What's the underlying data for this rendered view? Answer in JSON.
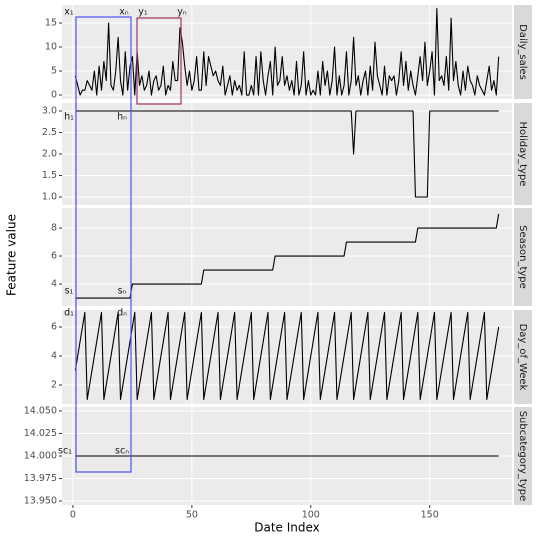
{
  "chart_data": {
    "type": "line",
    "xlabel": "Date Index",
    "ylabel": "Feature value",
    "xlim": [
      -4.6,
      184.6
    ],
    "xticks": [
      0,
      50,
      100,
      150
    ],
    "grid": true,
    "color": "#000000",
    "x": [
      1,
      2,
      3,
      4,
      5,
      6,
      7,
      8,
      9,
      10,
      11,
      12,
      13,
      14,
      15,
      16,
      17,
      18,
      19,
      20,
      21,
      22,
      23,
      24,
      25,
      26,
      27,
      28,
      29,
      30,
      31,
      32,
      33,
      34,
      35,
      36,
      37,
      38,
      39,
      40,
      41,
      42,
      43,
      44,
      45,
      46,
      47,
      48,
      49,
      50,
      51,
      52,
      53,
      54,
      55,
      56,
      57,
      58,
      59,
      60,
      61,
      62,
      63,
      64,
      65,
      66,
      67,
      68,
      69,
      70,
      71,
      72,
      73,
      74,
      75,
      76,
      77,
      78,
      79,
      80,
      81,
      82,
      83,
      84,
      85,
      86,
      87,
      88,
      89,
      90,
      91,
      92,
      93,
      94,
      95,
      96,
      97,
      98,
      99,
      100,
      101,
      102,
      103,
      104,
      105,
      106,
      107,
      108,
      109,
      110,
      111,
      112,
      113,
      114,
      115,
      116,
      117,
      118,
      119,
      120,
      121,
      122,
      123,
      124,
      125,
      126,
      127,
      128,
      129,
      130,
      131,
      132,
      133,
      134,
      135,
      136,
      137,
      138,
      139,
      140,
      141,
      142,
      143,
      144,
      145,
      146,
      147,
      148,
      149,
      150,
      151,
      152,
      153,
      154,
      155,
      156,
      157,
      158,
      159,
      160,
      161,
      162,
      163,
      164,
      165,
      166,
      167,
      168,
      169,
      170,
      171,
      172,
      173,
      174,
      175,
      176,
      177,
      178,
      179
    ],
    "panels": [
      {
        "strip": "Daily_sales",
        "ylim": [
          -0.83,
          18.75
        ],
        "yticks": [
          0,
          5,
          10,
          15
        ],
        "annotations": [
          "x₁",
          "xₙ",
          "y₁",
          "yₙ"
        ],
        "values": [
          4,
          2,
          0,
          1,
          1,
          3,
          2,
          1,
          5,
          0,
          6,
          1,
          7,
          3,
          15,
          2,
          1,
          5,
          12,
          3,
          0,
          9,
          1,
          6,
          8,
          0,
          9,
          2,
          4,
          1,
          2,
          5,
          0,
          3,
          4,
          1,
          2,
          6,
          0,
          2,
          1,
          7,
          3,
          3,
          14,
          11,
          6,
          2,
          5,
          1,
          3,
          8,
          1,
          1,
          9,
          2,
          8,
          6,
          4,
          5,
          3,
          2,
          6,
          0,
          2,
          4,
          0,
          3,
          1,
          2,
          0,
          9,
          0,
          0,
          2,
          0,
          8,
          0,
          9,
          3,
          0,
          4,
          7,
          0,
          10,
          2,
          3,
          8,
          2,
          4,
          1,
          3,
          0,
          7,
          0,
          2,
          9,
          0,
          3,
          0,
          1,
          0,
          5,
          0,
          7,
          2,
          5,
          0,
          3,
          10,
          0,
          4,
          0,
          2,
          9,
          0,
          3,
          12,
          2,
          4,
          0,
          3,
          5,
          0,
          6,
          1,
          11,
          4,
          2,
          0,
          6,
          0,
          4,
          3,
          4,
          0,
          3,
          9,
          2,
          7,
          1,
          5,
          2,
          0,
          4,
          8,
          3,
          11,
          2,
          5,
          9,
          0,
          18,
          3,
          4,
          2,
          8,
          1,
          16,
          3,
          7,
          2,
          0,
          5,
          1,
          6,
          3,
          2,
          0,
          4,
          2,
          1,
          0,
          3,
          6,
          1,
          3,
          0,
          8
        ]
      },
      {
        "strip": "Holiday_type",
        "ylim": [
          0.814,
          3.186
        ],
        "yticks": [
          {
            "value": 1,
            "label": "1.0"
          },
          1.5,
          {
            "value": 2,
            "label": "2.0"
          },
          2.5,
          {
            "value": 3,
            "label": "3.0"
          }
        ],
        "annotations": [
          "h₁",
          "hₙ"
        ],
        "values": [
          3,
          3,
          3,
          3,
          3,
          3,
          3,
          3,
          3,
          3,
          3,
          3,
          3,
          3,
          3,
          3,
          3,
          3,
          3,
          3,
          3,
          3,
          3,
          3,
          3,
          3,
          3,
          3,
          3,
          3,
          3,
          3,
          3,
          3,
          3,
          3,
          3,
          3,
          3,
          3,
          3,
          3,
          3,
          3,
          3,
          3,
          3,
          3,
          3,
          3,
          3,
          3,
          3,
          3,
          3,
          3,
          3,
          3,
          3,
          3,
          3,
          3,
          3,
          3,
          3,
          3,
          3,
          3,
          3,
          3,
          3,
          3,
          3,
          3,
          3,
          3,
          3,
          3,
          3,
          3,
          3,
          3,
          3,
          3,
          3,
          3,
          3,
          3,
          3,
          3,
          3,
          3,
          3,
          3,
          3,
          3,
          3,
          3,
          3,
          3,
          3,
          3,
          3,
          3,
          3,
          3,
          3,
          3,
          3,
          3,
          3,
          3,
          3,
          3,
          3,
          3,
          3,
          2,
          3,
          3,
          3,
          3,
          3,
          3,
          3,
          3,
          3,
          3,
          3,
          3,
          3,
          3,
          3,
          3,
          3,
          3,
          3,
          3,
          3,
          3,
          3,
          3,
          3,
          1,
          1,
          1,
          1,
          1,
          1,
          3,
          3,
          3,
          3,
          3,
          3,
          3,
          3,
          3,
          3,
          3,
          3,
          3,
          3,
          3,
          3,
          3,
          3,
          3,
          3,
          3,
          3,
          3,
          3,
          3,
          3,
          3,
          3,
          3,
          3
        ]
      },
      {
        "strip": "Season_type",
        "ylim": [
          2.43,
          9.43
        ],
        "yticks": [
          4,
          6,
          8
        ],
        "annotations": [
          "s₁",
          "sₙ"
        ],
        "values": [
          3,
          3,
          3,
          3,
          3,
          3,
          3,
          3,
          3,
          3,
          3,
          3,
          3,
          3,
          3,
          3,
          3,
          3,
          3,
          3,
          3,
          3,
          3,
          3,
          4,
          4,
          4,
          4,
          4,
          4,
          4,
          4,
          4,
          4,
          4,
          4,
          4,
          4,
          4,
          4,
          4,
          4,
          4,
          4,
          4,
          4,
          4,
          4,
          4,
          4,
          4,
          4,
          4,
          4,
          5,
          5,
          5,
          5,
          5,
          5,
          5,
          5,
          5,
          5,
          5,
          5,
          5,
          5,
          5,
          5,
          5,
          5,
          5,
          5,
          5,
          5,
          5,
          5,
          5,
          5,
          5,
          5,
          5,
          5,
          6,
          6,
          6,
          6,
          6,
          6,
          6,
          6,
          6,
          6,
          6,
          6,
          6,
          6,
          6,
          6,
          6,
          6,
          6,
          6,
          6,
          6,
          6,
          6,
          6,
          6,
          6,
          6,
          6,
          6,
          7,
          7,
          7,
          7,
          7,
          7,
          7,
          7,
          7,
          7,
          7,
          7,
          7,
          7,
          7,
          7,
          7,
          7,
          7,
          7,
          7,
          7,
          7,
          7,
          7,
          7,
          7,
          7,
          7,
          7,
          8,
          8,
          8,
          8,
          8,
          8,
          8,
          8,
          8,
          8,
          8,
          8,
          8,
          8,
          8,
          8,
          8,
          8,
          8,
          8,
          8,
          8,
          8,
          8,
          8,
          8,
          8,
          8,
          8,
          8,
          8,
          8,
          8,
          8,
          9
        ]
      },
      {
        "strip": "Day_of_Week",
        "ylim": [
          0.69,
          7.17
        ],
        "yticks": [
          2,
          4,
          6
        ],
        "annotations": [
          "d₁",
          "dₙ"
        ],
        "values": [
          3,
          4,
          5,
          6,
          7,
          1,
          2,
          3,
          4,
          5,
          6,
          7,
          1,
          2,
          3,
          4,
          5,
          6,
          7,
          1,
          2,
          3,
          4,
          5,
          6,
          7,
          1,
          2,
          3,
          4,
          5,
          6,
          7,
          1,
          2,
          3,
          4,
          5,
          6,
          7,
          1,
          2,
          3,
          4,
          5,
          6,
          7,
          1,
          2,
          3,
          4,
          5,
          6,
          7,
          1,
          2,
          3,
          4,
          5,
          6,
          7,
          1,
          2,
          3,
          4,
          5,
          6,
          7,
          1,
          2,
          3,
          4,
          5,
          6,
          7,
          1,
          2,
          3,
          4,
          5,
          6,
          7,
          1,
          2,
          3,
          4,
          5,
          6,
          7,
          1,
          2,
          3,
          4,
          5,
          6,
          7,
          1,
          2,
          3,
          4,
          5,
          6,
          7,
          1,
          2,
          3,
          4,
          5,
          6,
          7,
          1,
          2,
          3,
          4,
          5,
          6,
          7,
          1,
          2,
          3,
          4,
          5,
          6,
          7,
          1,
          2,
          3,
          4,
          5,
          6,
          7,
          1,
          2,
          3,
          4,
          5,
          6,
          7,
          1,
          2,
          3,
          4,
          5,
          6,
          7,
          1,
          2,
          3,
          4,
          5,
          6,
          7,
          1,
          2,
          3,
          4,
          5,
          6,
          7,
          1,
          2,
          3,
          4,
          5,
          6,
          7,
          1,
          2,
          3,
          4,
          5,
          6,
          7,
          1,
          2,
          3,
          4,
          5,
          6
        ]
      },
      {
        "strip": "Subcategory_type",
        "ylim": [
          13.9456,
          14.0544
        ],
        "yticks": [
          {
            "value": 13.95,
            "label": "13.950"
          },
          {
            "value": 13.975,
            "label": "13.975"
          },
          {
            "value": 14,
            "label": "14.000"
          },
          {
            "value": 14.025,
            "label": "14.025"
          },
          {
            "value": 14.05,
            "label": "14.050"
          }
        ],
        "annotations": [
          "sc₁",
          "scₙ"
        ],
        "values": [
          14,
          14,
          14,
          14,
          14,
          14,
          14,
          14,
          14,
          14,
          14,
          14,
          14,
          14,
          14,
          14,
          14,
          14,
          14,
          14,
          14,
          14,
          14,
          14,
          14,
          14,
          14,
          14,
          14,
          14,
          14,
          14,
          14,
          14,
          14,
          14,
          14,
          14,
          14,
          14,
          14,
          14,
          14,
          14,
          14,
          14,
          14,
          14,
          14,
          14,
          14,
          14,
          14,
          14,
          14,
          14,
          14,
          14,
          14,
          14,
          14,
          14,
          14,
          14,
          14,
          14,
          14,
          14,
          14,
          14,
          14,
          14,
          14,
          14,
          14,
          14,
          14,
          14,
          14,
          14,
          14,
          14,
          14,
          14,
          14,
          14,
          14,
          14,
          14,
          14,
          14,
          14,
          14,
          14,
          14,
          14,
          14,
          14,
          14,
          14,
          14,
          14,
          14,
          14,
          14,
          14,
          14,
          14,
          14,
          14,
          14,
          14,
          14,
          14,
          14,
          14,
          14,
          14,
          14,
          14,
          14,
          14,
          14,
          14,
          14,
          14,
          14,
          14,
          14,
          14,
          14,
          14,
          14,
          14,
          14,
          14,
          14,
          14,
          14,
          14,
          14,
          14,
          14,
          14,
          14,
          14,
          14,
          14,
          14,
          14,
          14,
          14,
          14,
          14,
          14,
          14,
          14,
          14,
          14,
          14,
          14,
          14,
          14,
          14,
          14,
          14,
          14,
          14,
          14,
          14,
          14,
          14,
          14,
          14,
          14,
          14,
          14,
          14,
          14
        ]
      }
    ]
  }
}
